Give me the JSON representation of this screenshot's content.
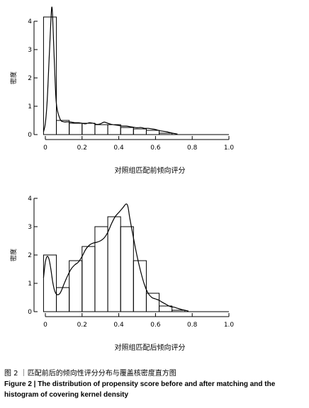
{
  "chart_data": [
    {
      "type": "bar",
      "title": "",
      "xlabel": "对照组匹配前倾向评分",
      "ylabel": "密度",
      "xlim": [
        0,
        1.0
      ],
      "ylim": [
        0,
        4
      ],
      "xticks": [
        "0",
        "0.2",
        "0.4",
        "0.6",
        "0.8",
        "1.0"
      ],
      "yticks": [
        "0",
        "1",
        "2",
        "3",
        "4"
      ],
      "bin_edges": [
        -0.01,
        0.06,
        0.13,
        0.2,
        0.27,
        0.34,
        0.41,
        0.48,
        0.55,
        0.62,
        0.69
      ],
      "values": [
        4.15,
        0.5,
        0.4,
        0.4,
        0.35,
        0.35,
        0.25,
        0.2,
        0.15,
        0.05
      ],
      "density_curve": {
        "x": [
          -0.01,
          0.0,
          0.01,
          0.02,
          0.03,
          0.035,
          0.04,
          0.05,
          0.06,
          0.08,
          0.1,
          0.12,
          0.14,
          0.16,
          0.18,
          0.2,
          0.22,
          0.24,
          0.26,
          0.28,
          0.3,
          0.32,
          0.34,
          0.36,
          0.38,
          0.4,
          0.42,
          0.44,
          0.46,
          0.48,
          0.5,
          0.52,
          0.54,
          0.56,
          0.58,
          0.6,
          0.62,
          0.64,
          0.66,
          0.68,
          0.7,
          0.72
        ],
        "y": [
          0.1,
          0.4,
          1.2,
          2.6,
          4.0,
          4.5,
          4.1,
          2.4,
          1.1,
          0.55,
          0.45,
          0.45,
          0.44,
          0.42,
          0.42,
          0.4,
          0.38,
          0.42,
          0.4,
          0.36,
          0.38,
          0.44,
          0.4,
          0.36,
          0.34,
          0.32,
          0.3,
          0.3,
          0.28,
          0.26,
          0.24,
          0.25,
          0.22,
          0.22,
          0.2,
          0.18,
          0.14,
          0.12,
          0.1,
          0.07,
          0.04,
          0.02
        ]
      },
      "grid": false,
      "legend": "none"
    },
    {
      "type": "bar",
      "title": "",
      "xlabel": "对照组匹配后倾向评分",
      "ylabel": "密度",
      "xlim": [
        0,
        1.0
      ],
      "ylim": [
        0,
        4
      ],
      "xticks": [
        "0",
        "0.2",
        "0.4",
        "0.6",
        "0.8",
        "1.0"
      ],
      "yticks": [
        "0",
        "1",
        "2",
        "3",
        "4"
      ],
      "bin_edges": [
        -0.01,
        0.06,
        0.13,
        0.2,
        0.27,
        0.34,
        0.41,
        0.48,
        0.55,
        0.62,
        0.69,
        0.76
      ],
      "values": [
        2.0,
        0.85,
        1.8,
        2.3,
        3.0,
        3.35,
        3.0,
        1.8,
        0.65,
        0.2,
        0.05
      ],
      "density_curve": {
        "x": [
          -0.01,
          0.0,
          0.01,
          0.02,
          0.03,
          0.04,
          0.05,
          0.06,
          0.07,
          0.08,
          0.09,
          0.1,
          0.12,
          0.14,
          0.16,
          0.18,
          0.2,
          0.22,
          0.24,
          0.26,
          0.28,
          0.3,
          0.32,
          0.34,
          0.36,
          0.38,
          0.4,
          0.42,
          0.44,
          0.45,
          0.46,
          0.48,
          0.5,
          0.52,
          0.54,
          0.56,
          0.58,
          0.6,
          0.62,
          0.64,
          0.66,
          0.68,
          0.7,
          0.72,
          0.74,
          0.76,
          0.78
        ],
        "y": [
          1.2,
          1.75,
          1.95,
          1.85,
          1.5,
          1.05,
          0.75,
          0.62,
          0.6,
          0.65,
          0.78,
          0.95,
          1.25,
          1.5,
          1.65,
          1.75,
          1.95,
          2.2,
          2.35,
          2.42,
          2.45,
          2.5,
          2.6,
          2.8,
          3.1,
          3.35,
          3.5,
          3.65,
          3.8,
          3.7,
          3.3,
          2.6,
          1.95,
          1.4,
          0.95,
          0.65,
          0.5,
          0.45,
          0.4,
          0.32,
          0.25,
          0.18,
          0.16,
          0.12,
          0.08,
          0.05,
          0.02
        ]
      },
      "grid": false,
      "legend": "none"
    }
  ],
  "caption": {
    "zh": "图 2 ｜匹配前后的倾向性评分分布与覆盖核密度直方图",
    "en": "Figure 2 | The distribution of propensity score before and after matching and the histogram of covering kernel density"
  }
}
